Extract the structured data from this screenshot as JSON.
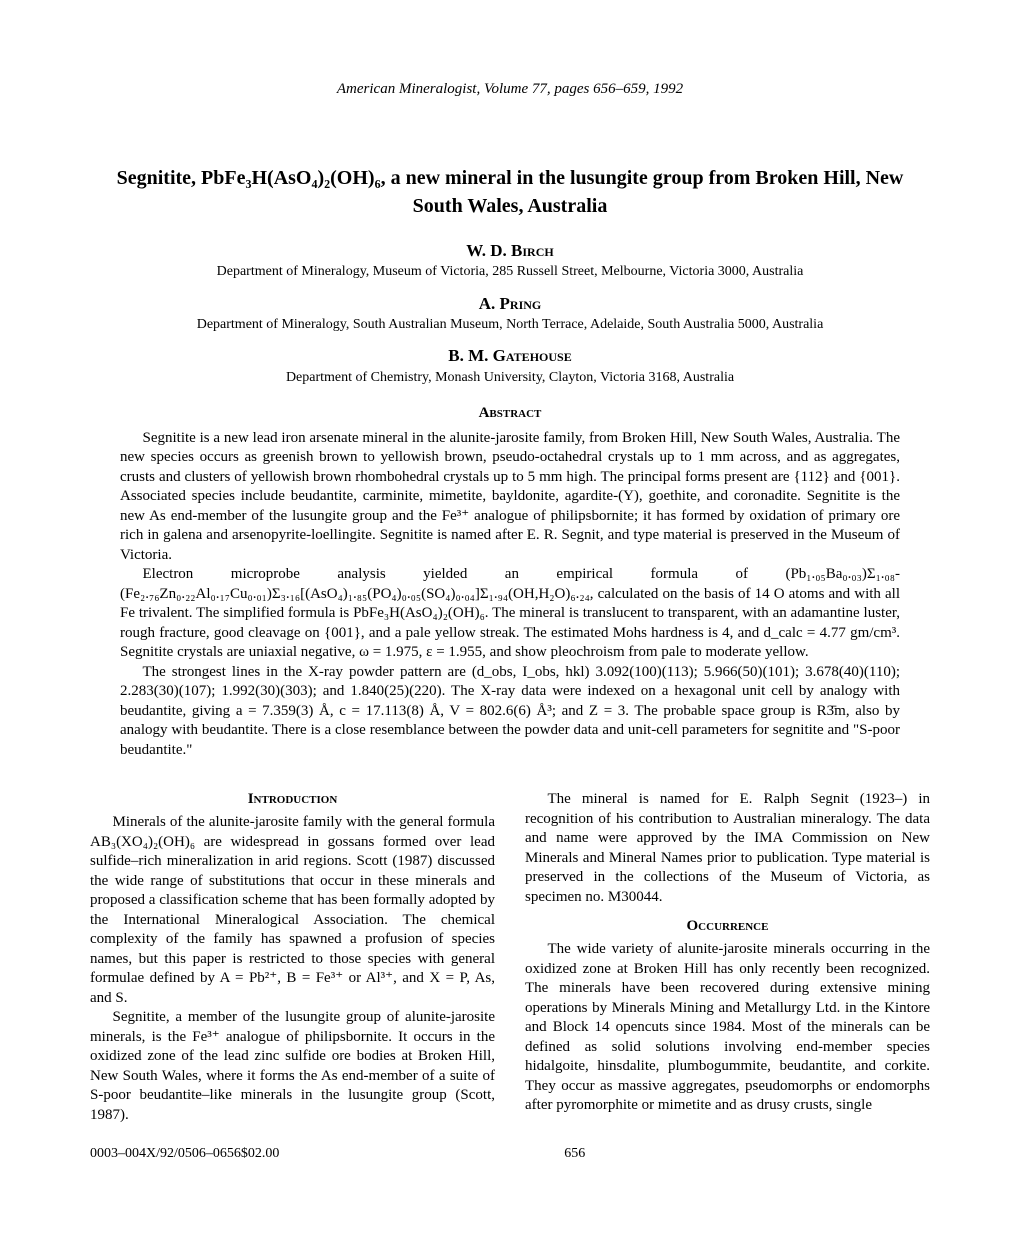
{
  "journal_header": "American Mineralogist, Volume 77, pages 656–659, 1992",
  "title": "Segnitite, PbFe₃H(AsO₄)₂(OH)₆, a new mineral in the lusungite group from Broken Hill, New South Wales, Australia",
  "authors": [
    {
      "name": "W. D. Birch",
      "affiliation": "Department of Mineralogy, Museum of Victoria, 285 Russell Street, Melbourne, Victoria 3000, Australia"
    },
    {
      "name": "A. Pring",
      "affiliation": "Department of Mineralogy, South Australian Museum, North Terrace, Adelaide, South Australia 5000, Australia"
    },
    {
      "name": "B. M. Gatehouse",
      "affiliation": "Department of Chemistry, Monash University, Clayton, Victoria 3168, Australia"
    }
  ],
  "abstract_heading": "Abstract",
  "abstract_paras": [
    "Segnitite is a new lead iron arsenate mineral in the alunite-jarosite family, from Broken Hill, New South Wales, Australia. The new species occurs as greenish brown to yellowish brown, pseudo-octahedral crystals up to 1 mm across, and as aggregates, crusts and clusters of yellowish brown rhombohedral crystals up to 5 mm high. The principal forms present are {112} and {001}. Associated species include beudantite, carminite, mimetite, bayldonite, agardite-(Y), goethite, and coronadite. Segnitite is the new As end-member of the lusungite group and the Fe³⁺ analogue of philipsbornite; it has formed by oxidation of primary ore rich in galena and arsenopyrite-loellingite. Segnitite is named after E. R. Segnit, and type material is preserved in the Museum of Victoria.",
    "Electron microprobe analysis yielded an empirical formula of (Pb₁.₀₅Ba₀.₀₃)Σ₁.₀₈-(Fe₂.₇₆Zn₀.₂₂Al₀.₁₇Cu₀.₀₁)Σ₃.₁₆[(AsO₄)₁.₈₅(PO₄)₀.₀₅(SO₄)₀.₀₄]Σ₁.₉₄(OH,H₂O)₆.₂₄, calculated on the basis of 14 O atoms and with all Fe trivalent. The simplified formula is PbFe₃H(AsO₄)₂(OH)₆. The mineral is translucent to transparent, with an adamantine luster, rough fracture, good cleavage on {001}, and a pale yellow streak. The estimated Mohs hardness is 4, and d_calc = 4.77 gm/cm³. Segnitite crystals are uniaxial negative, ω = 1.975, ε = 1.955, and show pleochroism from pale to moderate yellow.",
    "The strongest lines in the X-ray powder pattern are (d_obs, I_obs, hkl) 3.092(100)(113); 5.966(50)(101); 3.678(40)(110); 2.283(30)(107); 1.992(30)(303); and 1.840(25)(220). The X-ray data were indexed on a hexagonal unit cell by analogy with beudantite, giving a = 7.359(3) Å, c = 17.113(8) Å, V = 802.6(6) Å³; and Z = 3. The probable space group is R3̄m, also by analogy with beudantite. There is a close resemblance between the powder data and unit-cell parameters for segnitite and \"S-poor beudantite.\""
  ],
  "intro_heading": "Introduction",
  "intro_paras": [
    "Minerals of the alunite-jarosite family with the general formula AB₃(XO₄)₂(OH)₆ are widespread in gossans formed over lead sulfide–rich mineralization in arid regions. Scott (1987) discussed the wide range of substitutions that occur in these minerals and proposed a classification scheme that has been formally adopted by the International Mineralogical Association. The chemical complexity of the family has spawned a profusion of species names, but this paper is restricted to those species with general formulae defined by A = Pb²⁺, B = Fe³⁺ or Al³⁺, and X = P, As, and S.",
    "Segnitite, a member of the lusungite group of alunite-jarosite minerals, is the Fe³⁺ analogue of philipsbornite. It occurs in the oxidized zone of the lead zinc sulfide ore bodies at Broken Hill, New South Wales, where it forms the As end-member of a suite of S-poor beudantite–like minerals in the lusungite group (Scott, 1987)."
  ],
  "col2_para": "The mineral is named for E. Ralph Segnit (1923–) in recognition of his contribution to Australian mineralogy. The data and name were approved by the IMA Commission on New Minerals and Mineral Names prior to publication. Type material is preserved in the collections of the Museum of Victoria, as specimen no. M30044.",
  "occurrence_heading": "Occurrence",
  "occurrence_para": "The wide variety of alunite-jarosite minerals occurring in the oxidized zone at Broken Hill has only recently been recognized. The minerals have been recovered during extensive mining operations by Minerals Mining and Metallurgy Ltd. in the Kintore and Block 14 opencuts since 1984. Most of the minerals can be defined as solid solutions involving end-member species hidalgoite, hinsdalite, plumbogummite, beudantite, and corkite. They occur as massive aggregates, pseudomorphs or endomorphs after pyromorphite or mimetite and as drusy crusts, single",
  "footer_left": "0003–004X/92/0506–0656$02.00",
  "footer_page": "656"
}
